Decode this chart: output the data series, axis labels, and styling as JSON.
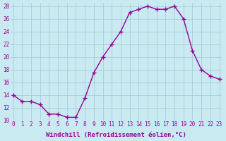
{
  "x": [
    0,
    1,
    2,
    3,
    4,
    5,
    6,
    7,
    8,
    9,
    10,
    11,
    12,
    13,
    14,
    15,
    16,
    17,
    18,
    19,
    20,
    21,
    22,
    23
  ],
  "y": [
    14,
    13,
    13,
    12.5,
    11,
    11,
    10.5,
    10.5,
    13.5,
    17.5,
    20,
    22,
    24,
    27,
    27.5,
    28,
    27.5,
    27.5,
    28,
    26,
    21,
    18,
    17,
    16.5
  ],
  "line_color": "#990099",
  "marker": "+",
  "background_color": "#c8eaf0",
  "grid_color": "#a0c8d8",
  "xlabel": "Windchill (Refroidissement éolien,°C)",
  "xlabel_color": "#990099",
  "tick_color": "#990099",
  "xlim": [
    -0.3,
    23.3
  ],
  "ylim": [
    10,
    28.5
  ],
  "yticks": [
    10,
    12,
    14,
    16,
    18,
    20,
    22,
    24,
    26,
    28
  ],
  "xticks": [
    0,
    1,
    2,
    3,
    4,
    5,
    6,
    7,
    8,
    9,
    10,
    11,
    12,
    13,
    14,
    15,
    16,
    17,
    18,
    19,
    20,
    21,
    22,
    23
  ]
}
